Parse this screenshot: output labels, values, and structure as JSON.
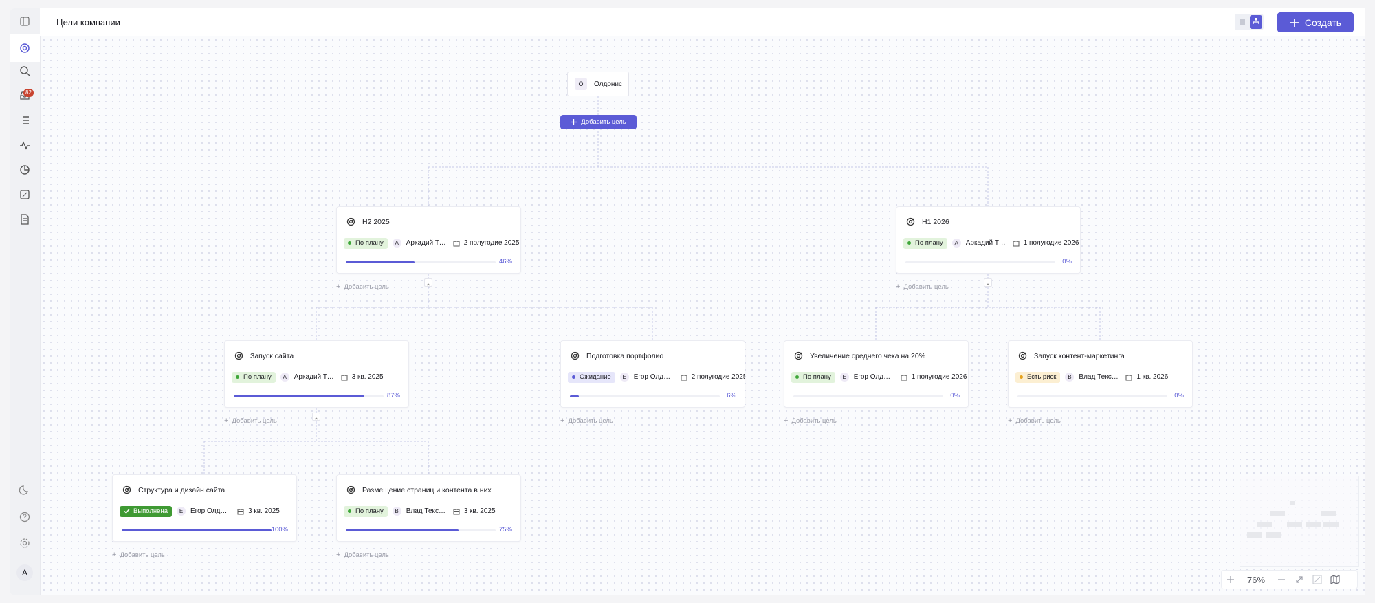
{
  "sidebar": {
    "inbox_badge": "82",
    "avatar": "А"
  },
  "header": {
    "title": "Цели компании",
    "create_button": "Создать"
  },
  "root": {
    "avatar": "О",
    "label": "Олдонис",
    "add_button": "Добавить цель"
  },
  "goals": [
    {
      "title": "H2 2025",
      "status": "По плану",
      "owner_initial": "А",
      "owner": "Аркадий Титов",
      "period": "2 полугодие 2025",
      "progress": {
        "value": 46,
        "label": "46%"
      },
      "add_goal": "Добавить цель"
    },
    {
      "title": "H1 2026",
      "status": "По плану",
      "owner_initial": "А",
      "owner": "Аркадий Титов",
      "period": "1 полугодие 2026",
      "progress": {
        "value": 0,
        "label": "0%"
      },
      "add_goal": "Добавить цель"
    },
    {
      "title": "Запуск сайта",
      "status": "По плану",
      "owner_initial": "А",
      "owner": "Аркадий Титов",
      "period": "3 кв. 2025",
      "progress": {
        "value": 87,
        "label": "87%"
      },
      "add_goal": "Добавить цель"
    },
    {
      "title": "Подготовка портфолио",
      "status": "Ожидание",
      "owner_initial": "Е",
      "owner": "Егор Олдонис",
      "period": "2 полугодие 2025",
      "progress": {
        "value": 6,
        "label": "6%"
      },
      "add_goal": "Добавить цель"
    },
    {
      "title": "Увеличение среднего чека на 20%",
      "status": "По плану",
      "owner_initial": "Е",
      "owner": "Егор Олдонис",
      "period": "1 полугодие 2026",
      "progress": {
        "value": 0,
        "label": "0%"
      },
      "add_goal": "Добавить цель"
    },
    {
      "title": "Запуск контент-маркетинга",
      "status": "Есть риск",
      "owner_initial": "В",
      "owner": "Влад Текстов",
      "period": "1 кв. 2026",
      "progress": {
        "value": 0,
        "label": "0%"
      },
      "add_goal": "Добавить цель"
    },
    {
      "title": "Структура и дизайн сайта",
      "status": "Выполнена",
      "owner_initial": "Е",
      "owner": "Егор Олдонис",
      "period": "3 кв. 2025",
      "progress": {
        "value": 100,
        "label": "100%"
      },
      "add_goal": "Добавить цель"
    },
    {
      "title": "Размещение страниц и контента в них",
      "status": "По плану",
      "owner_initial": "В",
      "owner": "Влад Текстов",
      "period": "3 кв. 2025",
      "progress": {
        "value": 75,
        "label": "75%"
      },
      "add_goal": "Добавить цель"
    }
  ],
  "zoom": {
    "label": "76%"
  }
}
